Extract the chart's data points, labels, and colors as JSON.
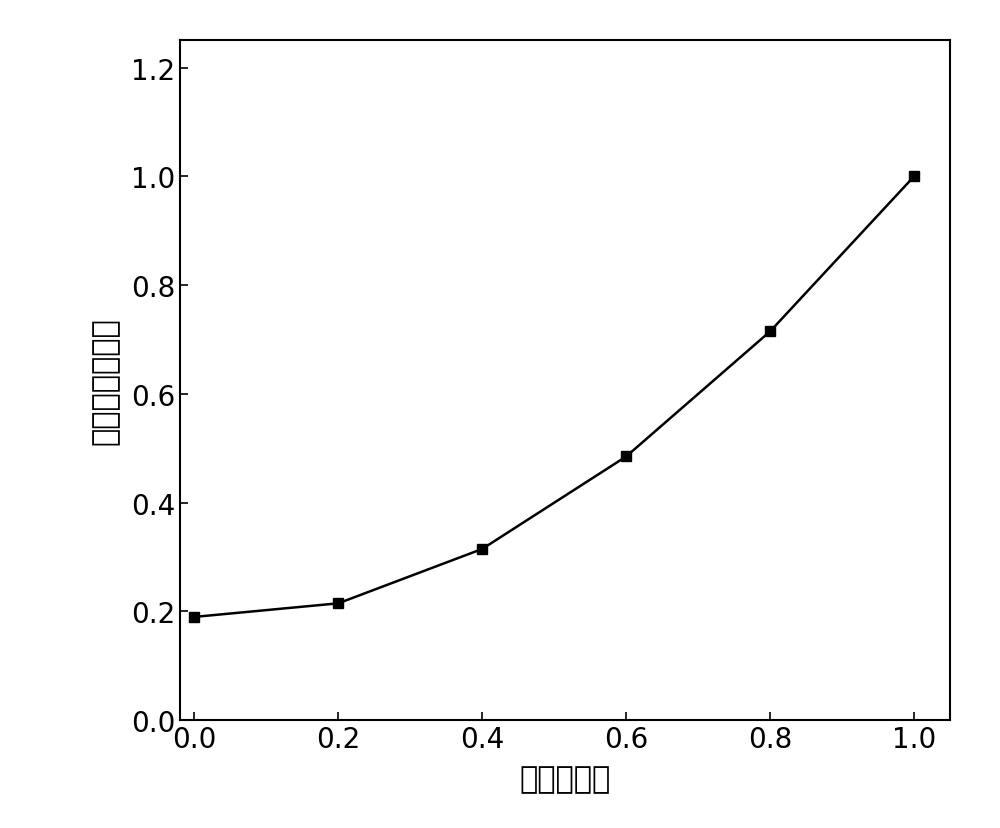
{
  "x": [
    0.0,
    0.2,
    0.4,
    0.6,
    0.8,
    1.0
  ],
  "y": [
    0.19,
    0.215,
    0.315,
    0.485,
    0.715,
    1.0
  ],
  "line_color": "#000000",
  "marker": "s",
  "marker_size": 7,
  "marker_facecolor": "#000000",
  "marker_edgecolor": "#000000",
  "line_width": 1.8,
  "xlabel": "无量纲距离",
  "ylabel": "实测无量纲浓度",
  "xlim": [
    -0.02,
    1.05
  ],
  "ylim": [
    0.0,
    1.25
  ],
  "xticks": [
    0.0,
    0.2,
    0.4,
    0.6,
    0.8,
    1.0
  ],
  "yticks": [
    0.0,
    0.2,
    0.4,
    0.6,
    0.8,
    1.0,
    1.2
  ],
  "xlabel_fontsize": 22,
  "ylabel_fontsize": 22,
  "tick_fontsize": 20,
  "background_color": "#ffffff",
  "spine_color": "#000000",
  "fig_width": 10.0,
  "fig_height": 8.29,
  "dpi": 100
}
